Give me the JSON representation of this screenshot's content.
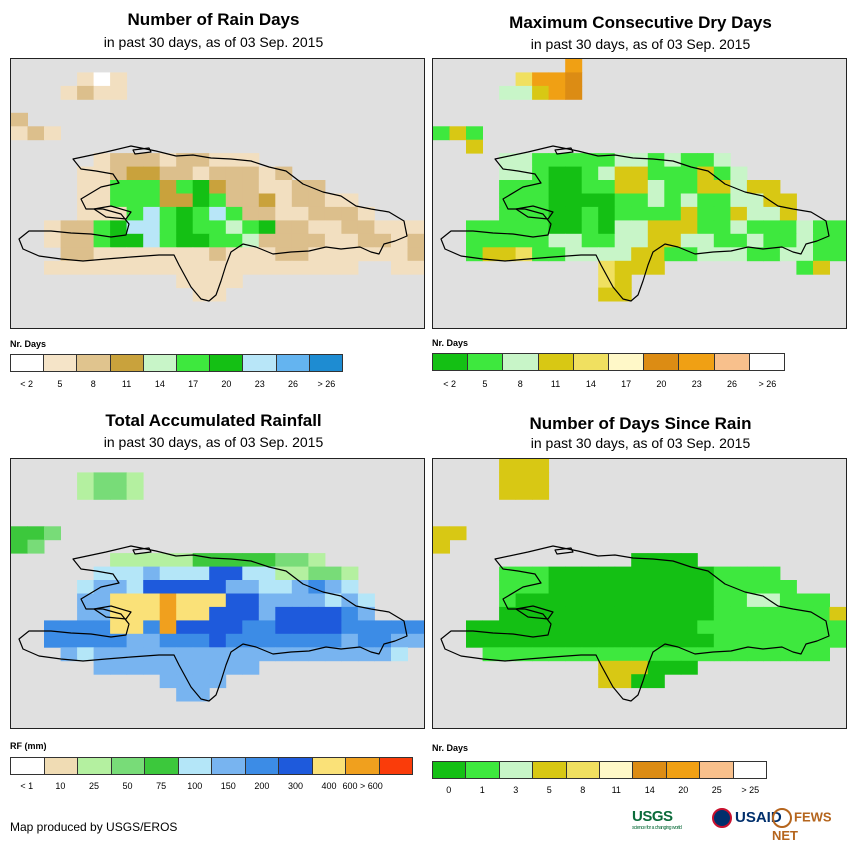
{
  "panels": [
    {
      "title": "Number of Rain Days",
      "subtitle": "in past 30 days, as of 03 Sep. 2015",
      "legend_title": "Nr. Days",
      "legend_colors": [
        "#ffffff",
        "#f5e4c8",
        "#e0c48e",
        "#c9a23c",
        "#c8f5c8",
        "#3ee83e",
        "#14c014",
        "#b8e6f8",
        "#64b4f0",
        "#1e8cd2"
      ],
      "legend_labels": [
        "< 2",
        "5",
        "8",
        "11",
        "14",
        "17",
        "20",
        "23",
        "26",
        "> 26"
      ],
      "legend_label_pos": "center",
      "palette": [
        "#e0e0e0",
        "#f2dfc0",
        "#dcbf8c",
        "#c9a23c",
        "#c8f5c8",
        "#3ee83e",
        "#14c014",
        "#b8e6f8",
        "#64b4f0",
        "#ffffff"
      ],
      "grid": [
        "0000000000000000000000000",
        "0000191000000000000000000",
        "0001211000000000000000000",
        "0000000000000000000000000",
        "2000000000000000000000000",
        "1210000000000000000000000",
        "0000000000000000000000000",
        "0000012221221110000000000",
        "0000112332212221200000000",
        "0000115553563221122000000",
        "0000115553365223122110000",
        "0000111575657522112221000",
        "0012256775655456221122111",
        "0012256675665542222112212",
        "0002211111112111221111112",
        "0011111111111111111110011",
        "0000000000111100000000000",
        "0000000000011000000000000",
        "0000000000000000000000000",
        "0000000000000000000000000"
      ]
    },
    {
      "title": "Maximum Consecutive Dry Days",
      "subtitle": "in past 30 days, as of 03 Sep. 2015",
      "legend_title": "Nr. Days",
      "legend_colors": [
        "#14c014",
        "#3ee83e",
        "#c8f5c8",
        "#d8c814",
        "#f0e060",
        "#fff8c8",
        "#dc8c14",
        "#f0a014",
        "#f8c08c",
        "#ffffff"
      ],
      "legend_labels": [
        "< 2",
        "5",
        "8",
        "11",
        "14",
        "17",
        "20",
        "23",
        "26",
        "> 26"
      ],
      "legend_label_pos": "center",
      "palette": [
        "#e0e0e0",
        "#3ee83e",
        "#14c014",
        "#c8f5c8",
        "#d8c814",
        "#f0e060",
        "#fff8c8",
        "#dc8c14",
        "#f0a014",
        "#ffffff"
      ],
      "grid": [
        "0000000080000000000000000",
        "0000058870000000000000000",
        "0000334870000000000000000",
        "0000000000000000000000000",
        "0000000000000000000000000",
        "1410000000000000000000000",
        "0040000000000000000000000",
        "0000331111133131130000000",
        "0000331221344111413000000",
        "0000111221144311443440000",
        "0000111222211313113344000",
        "0000111221211114114334000",
        "0011111221233444113111311",
        "0011111331133443311311311",
        "0014451133334411333113311",
        "0000000000544400000000140",
        "0000000000540000000000000",
        "0000000000440000000000000",
        "0000000000000000000000000",
        "0000000000000000000000000"
      ]
    },
    {
      "title": "Total Accumulated Rainfall",
      "subtitle": "in past 30 days, as of 03 Sep. 2015",
      "legend_title": "RF (mm)",
      "legend_colors": [
        "#ffffff",
        "#f0dcb4",
        "#b4f0a0",
        "#78dc78",
        "#3cc83c",
        "#b4e6f8",
        "#78b4f0",
        "#3c8ce6",
        "#1e5adc",
        "#fae178",
        "#f0a01e",
        "#fa3c0a"
      ],
      "legend_labels": [
        "< 1",
        "10",
        "25",
        "50",
        "75",
        "100",
        "150",
        "200",
        "300",
        "400",
        "600 > 600"
      ],
      "legend_label_pos": "edge",
      "palette": [
        "#e0e0e0",
        "#b4f0a0",
        "#78dc78",
        "#3cc83c",
        "#b4e6f8",
        "#78b4f0",
        "#3c8ce6",
        "#1e5adc",
        "#fae178",
        "#f0a01e",
        "#ffffff"
      ],
      "grid": [
        "0000000000000000000000000",
        "0000122100000000000000000",
        "0000122100000000000000000",
        "0000000000000000000000000",
        "0000000000000000000000000",
        "3320000000000000000000000",
        "3200000000000000000000000",
        "0000001111133333221000000",
        "0000044454447744112210000",
        "0000455477777554456540000",
        "0000558889888775555454000",
        "0000558889887775777765000",
        "0066668869777766777766666",
        "0066666556667666666656655",
        "0005455555555555555555540",
        "0000055555555550000000000",
        "0000000005555000000000000",
        "0000000000550000000000000",
        "0000000000000000000000000",
        "0000000000000000000000000"
      ]
    },
    {
      "title": "Number of Days Since Rain",
      "subtitle": "in past 30 days, as of 03 Sep. 2015",
      "legend_title": "Nr. Days",
      "legend_colors": [
        "#14c014",
        "#3ee83e",
        "#c8f5c8",
        "#d8c814",
        "#f0e060",
        "#fff8c8",
        "#dc8c14",
        "#f0a014",
        "#f8c08c",
        "#ffffff"
      ],
      "legend_labels": [
        "0",
        "1",
        "3",
        "5",
        "8",
        "11",
        "14",
        "20",
        "25",
        "> 25"
      ],
      "legend_label_pos": "center",
      "palette": [
        "#e0e0e0",
        "#14c014",
        "#3ee83e",
        "#c8f5c8",
        "#d8c814",
        "#f0e060",
        "#fff8c8",
        "#dc8c14",
        "#f0a014",
        "#ffffff"
      ],
      "grid": [
        "0000444000000000000000000",
        "0000444000000000000000000",
        "0000444000000000000000000",
        "0000000000000000000000000",
        "0000000000000000000000000",
        "4400000000000000000000000",
        "4000000000000000000000000",
        "0000000000001111000000000",
        "0000222111111111122220000",
        "0000222111111111122222000",
        "0000211111111111122332220",
        "0000111111111111122222224",
        "0011111111111111222222222",
        "0011111111111111122222222",
        "0002222222222222222222220",
        "0000000000444111000000000",
        "0000000000441100000000000",
        "0000000000000000000000000",
        "0000000000000000000000000",
        "0000000000000000000000000"
      ]
    }
  ],
  "credit": "Map produced by USGS/EROS",
  "logos": {
    "usgs": "USGS",
    "usgs_tagline": "science for a changing world",
    "usaid": "USAID",
    "fews": "FEWS NET"
  }
}
